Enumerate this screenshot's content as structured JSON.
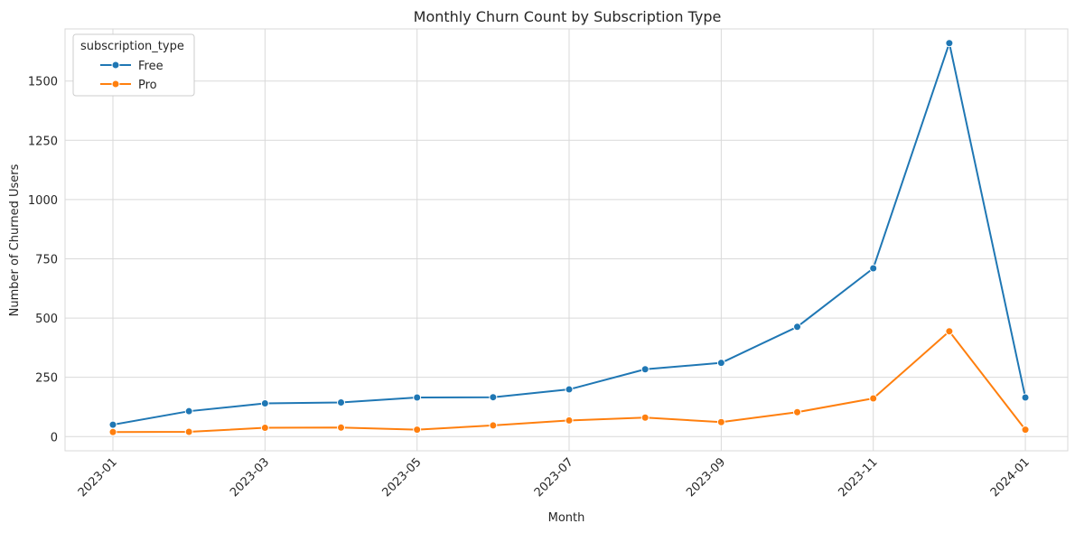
{
  "chart_data": {
    "type": "line",
    "title": "Monthly Churn Count by Subscription Type",
    "xlabel": "Month",
    "ylabel": "Number of Churned Users",
    "x": [
      "2023-01",
      "2023-02",
      "2023-03",
      "2023-04",
      "2023-05",
      "2023-06",
      "2023-07",
      "2023-08",
      "2023-09",
      "2023-10",
      "2023-11",
      "2023-12",
      "2024-01"
    ],
    "x_tick_labels": [
      "2023-01",
      "2023-03",
      "2023-05",
      "2023-07",
      "2023-09",
      "2023-11",
      "2024-01"
    ],
    "ylim": [
      -60,
      1720
    ],
    "y_ticks": [
      0,
      250,
      500,
      750,
      1000,
      1250,
      1500
    ],
    "grid": true,
    "legend": {
      "title": "subscription_type",
      "placement": "top-left"
    },
    "series": [
      {
        "name": "Free",
        "color": "#1f77b4",
        "marker": "circle",
        "values": [
          50,
          107,
          140,
          144,
          165,
          166,
          199,
          284,
          311,
          463,
          710,
          1660,
          165
        ]
      },
      {
        "name": "Pro",
        "color": "#ff7f0e",
        "marker": "circle",
        "values": [
          19,
          20,
          37,
          38,
          29,
          47,
          68,
          80,
          61,
          103,
          161,
          444,
          29
        ]
      }
    ]
  }
}
